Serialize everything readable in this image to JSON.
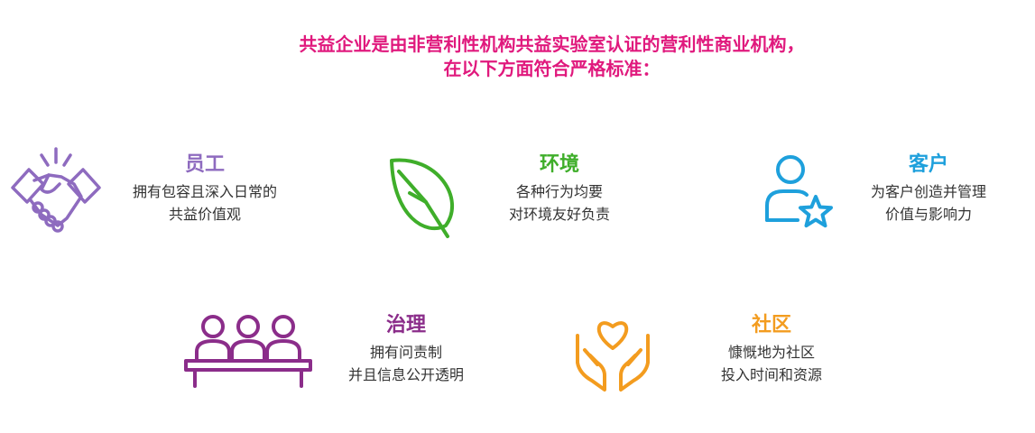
{
  "header": {
    "line1": "共益企业是由非营利性机构共益实验室认证的营利性商业机构，",
    "line2": "在以下方面符合严格标准："
  },
  "colors": {
    "header": "#e0197d",
    "employees": "#8e6bbf",
    "environment": "#3fae2a",
    "customers": "#1ea0dc",
    "governance": "#8b2d8a",
    "community": "#f39c1f"
  },
  "categories": {
    "employees": {
      "title": "员工",
      "line1": "拥有包容且深入日常的",
      "line2": "共益价值观",
      "icon": "handshake-icon"
    },
    "environment": {
      "title": "环境",
      "line1": "各种行为均要",
      "line2": "对环境友好负责",
      "icon": "leaf-icon"
    },
    "customers": {
      "title": "客户",
      "line1": "为客户创造并管理",
      "line2": "价值与影响力",
      "icon": "person-star-icon"
    },
    "governance": {
      "title": "治理",
      "line1": "拥有问责制",
      "line2": "并且信息公开透明",
      "icon": "board-meeting-icon"
    },
    "community": {
      "title": "社区",
      "line1": "慷慨地为社区",
      "line2": "投入时间和资源",
      "icon": "hands-heart-icon"
    }
  }
}
